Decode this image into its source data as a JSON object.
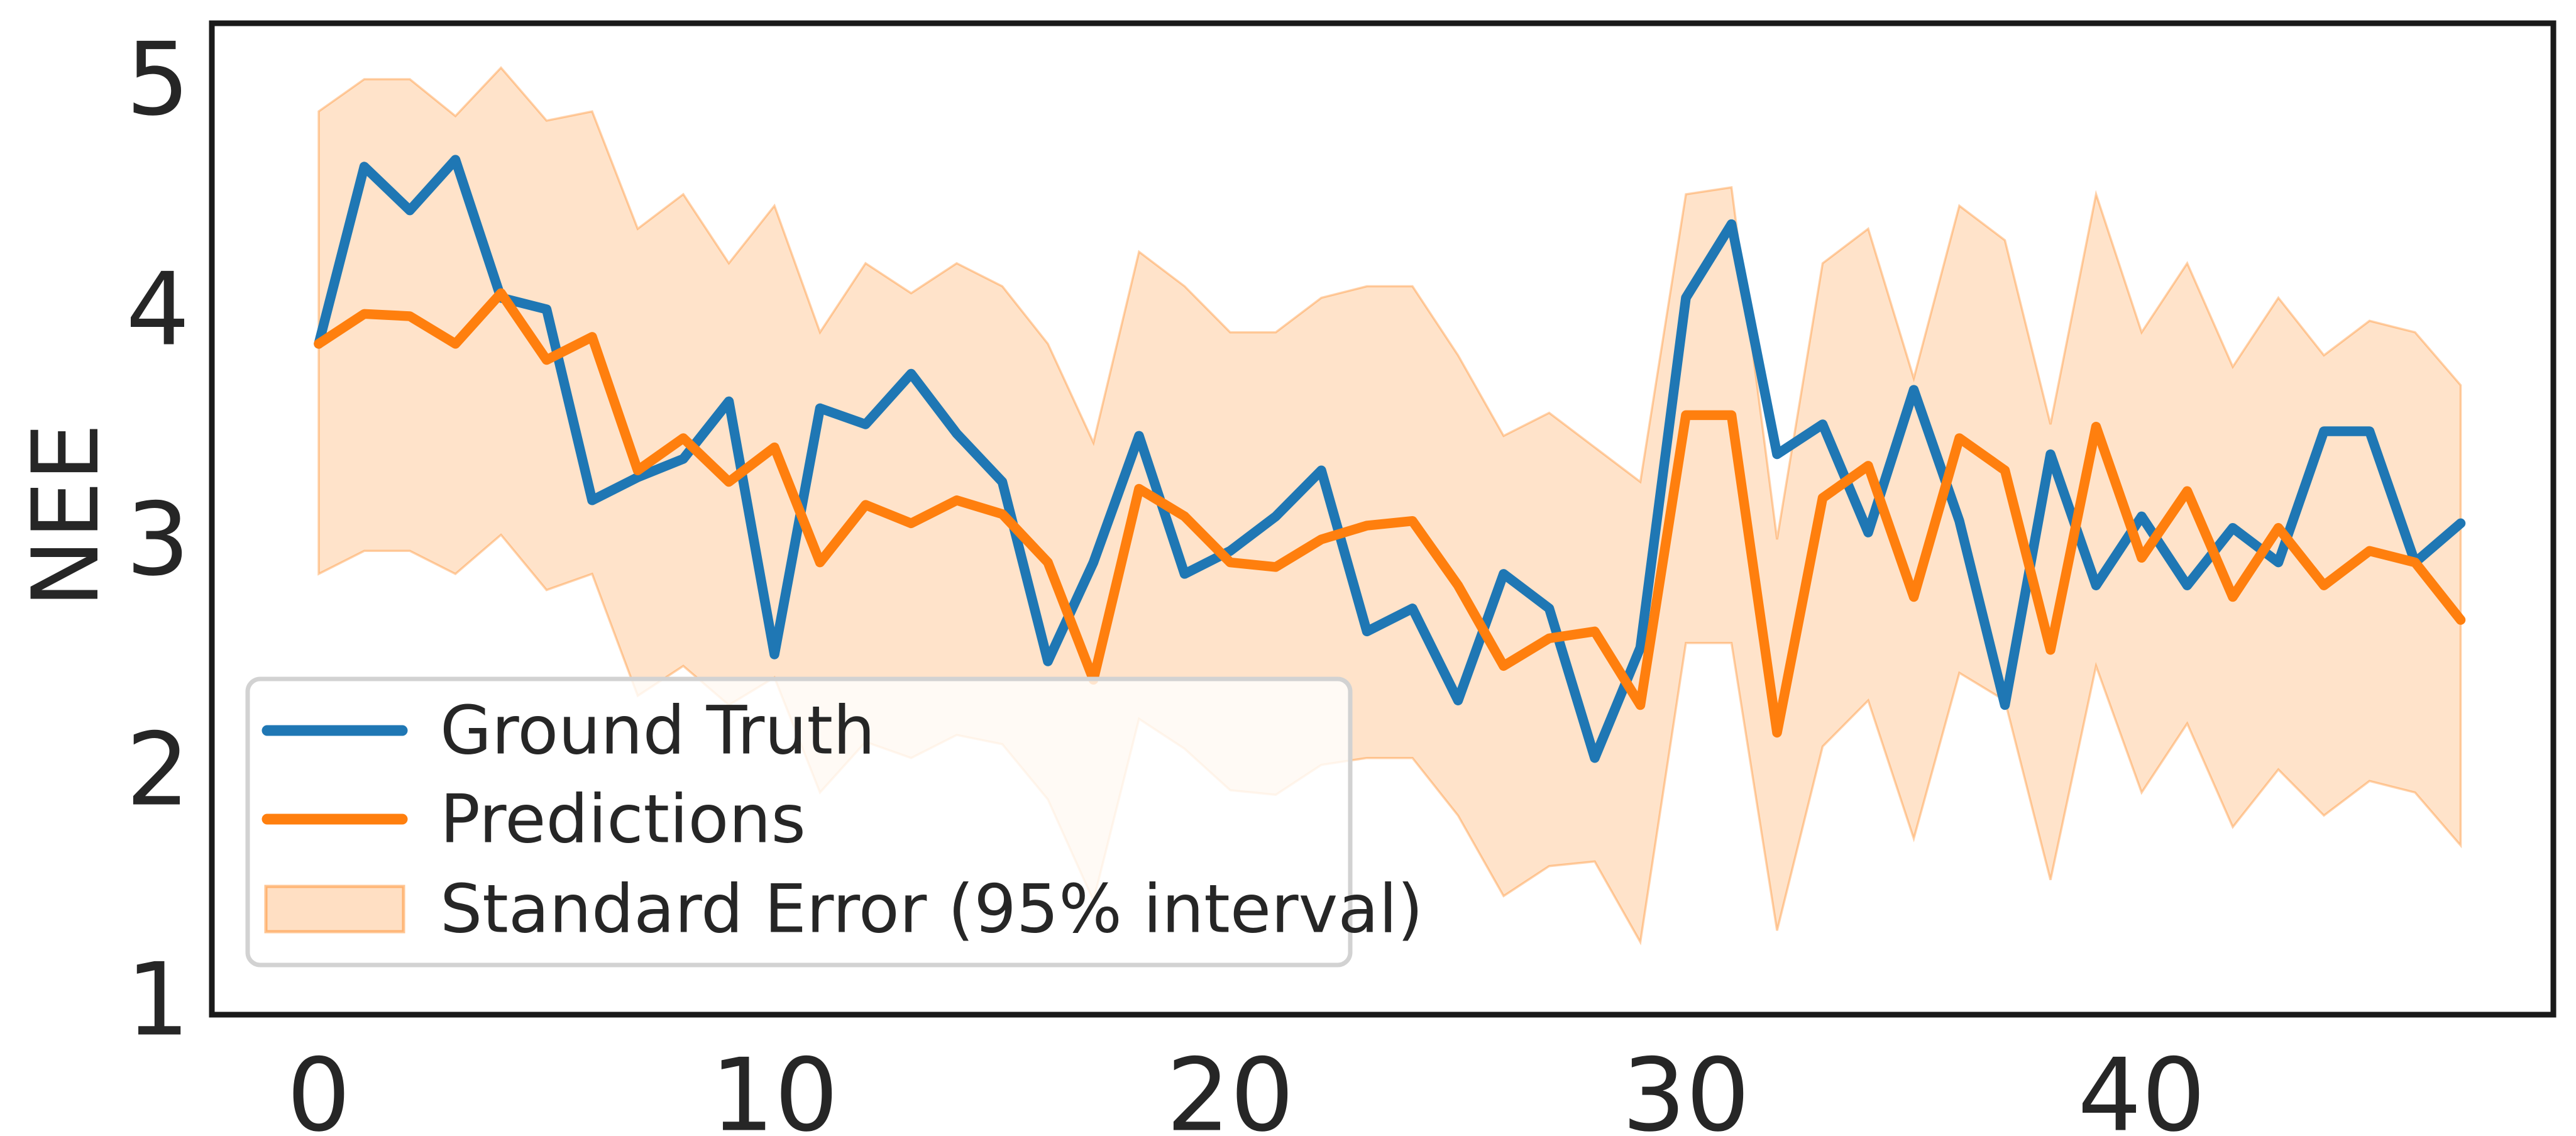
{
  "chart_data": {
    "type": "line",
    "title": "",
    "xlabel": "",
    "ylabel": "NEE",
    "x": [
      0,
      1,
      2,
      3,
      4,
      5,
      6,
      7,
      8,
      9,
      10,
      11,
      12,
      13,
      14,
      15,
      16,
      17,
      18,
      19,
      20,
      21,
      22,
      23,
      24,
      25,
      26,
      27,
      28,
      29,
      30,
      31,
      32,
      33,
      34,
      35,
      36,
      37,
      38,
      39,
      40,
      41,
      42,
      43,
      44,
      45,
      46,
      47
    ],
    "series": [
      {
        "name": "Ground Truth",
        "color": "#1f77b4",
        "values": [
          3.85,
          4.62,
          4.43,
          4.65,
          4.05,
          4.0,
          3.17,
          3.27,
          3.35,
          3.6,
          2.5,
          3.57,
          3.5,
          3.72,
          3.46,
          3.25,
          2.47,
          2.9,
          3.45,
          2.85,
          2.95,
          3.1,
          3.3,
          2.6,
          2.7,
          2.3,
          2.85,
          2.7,
          2.05,
          2.53,
          4.05,
          4.37,
          3.37,
          3.5,
          3.03,
          3.65,
          3.08,
          2.28,
          3.37,
          2.8,
          3.1,
          2.8,
          3.05,
          2.9,
          3.47,
          3.47,
          2.9,
          3.07
        ]
      },
      {
        "name": "Predictions",
        "color": "#ff7f0e",
        "values": [
          3.85,
          3.98,
          3.97,
          3.85,
          4.07,
          3.78,
          3.88,
          3.3,
          3.44,
          3.25,
          3.4,
          2.9,
          3.15,
          3.07,
          3.17,
          3.11,
          2.9,
          2.39,
          3.22,
          3.1,
          2.9,
          2.88,
          3.0,
          3.06,
          3.08,
          2.8,
          2.45,
          2.57,
          2.6,
          2.28,
          3.54,
          3.54,
          2.16,
          3.18,
          3.32,
          2.75,
          3.44,
          3.3,
          2.52,
          3.49,
          2.92,
          3.21,
          2.75,
          3.05,
          2.8,
          2.95,
          2.9,
          2.65
        ]
      }
    ],
    "band": {
      "name": "Standard Error (95% interval)",
      "color": "#ff7f0e",
      "fill_hex_on_white": "#ffe3cb",
      "opacity": 0.22,
      "upper": [
        4.86,
        5.0,
        5.0,
        4.84,
        5.05,
        4.82,
        4.86,
        4.35,
        4.5,
        4.2,
        4.45,
        3.9,
        4.2,
        4.07,
        4.2,
        4.1,
        3.85,
        3.42,
        4.25,
        4.1,
        3.9,
        3.9,
        4.05,
        4.1,
        4.1,
        3.8,
        3.45,
        3.55,
        3.4,
        3.25,
        4.5,
        4.53,
        3.0,
        4.2,
        4.35,
        3.7,
        4.45,
        4.3,
        3.5,
        4.5,
        3.9,
        4.2,
        3.75,
        4.05,
        3.8,
        3.95,
        3.9,
        3.67
      ],
      "lower": [
        2.85,
        2.95,
        2.95,
        2.85,
        3.02,
        2.78,
        2.85,
        2.32,
        2.45,
        2.28,
        2.4,
        1.9,
        2.12,
        2.05,
        2.15,
        2.11,
        1.87,
        1.43,
        2.22,
        2.09,
        1.91,
        1.89,
        2.02,
        2.05,
        2.05,
        1.8,
        1.45,
        1.58,
        1.6,
        1.25,
        2.55,
        2.55,
        1.3,
        2.1,
        2.3,
        1.7,
        2.42,
        2.3,
        1.52,
        2.45,
        1.9,
        2.2,
        1.75,
        2.0,
        1.8,
        1.95,
        1.9,
        1.67
      ]
    },
    "xticks": [
      0,
      10,
      20,
      30,
      40
    ],
    "yticks": [
      1,
      2,
      3,
      4,
      5
    ],
    "xlim": [
      -2.35,
      49.2
    ],
    "ylim": [
      0.93,
      5.25
    ],
    "grid": false,
    "legend_position": "lower left"
  },
  "legend": {
    "items": [
      {
        "label": "Ground Truth",
        "swatch": "line",
        "color": "#1f77b4"
      },
      {
        "label": "Predictions",
        "swatch": "line",
        "color": "#ff7f0e"
      },
      {
        "label": "Standard Error (95% interval)",
        "swatch": "patch",
        "color": "#ffe3cb"
      }
    ]
  },
  "style_colors": {
    "blue_line": "#1f77b4",
    "orange_line": "#ff7f0e",
    "band_fill": "#ffe3cb",
    "spine": "#1a1a1a",
    "text": "#262626",
    "legend_border": "#d2d2d2"
  }
}
